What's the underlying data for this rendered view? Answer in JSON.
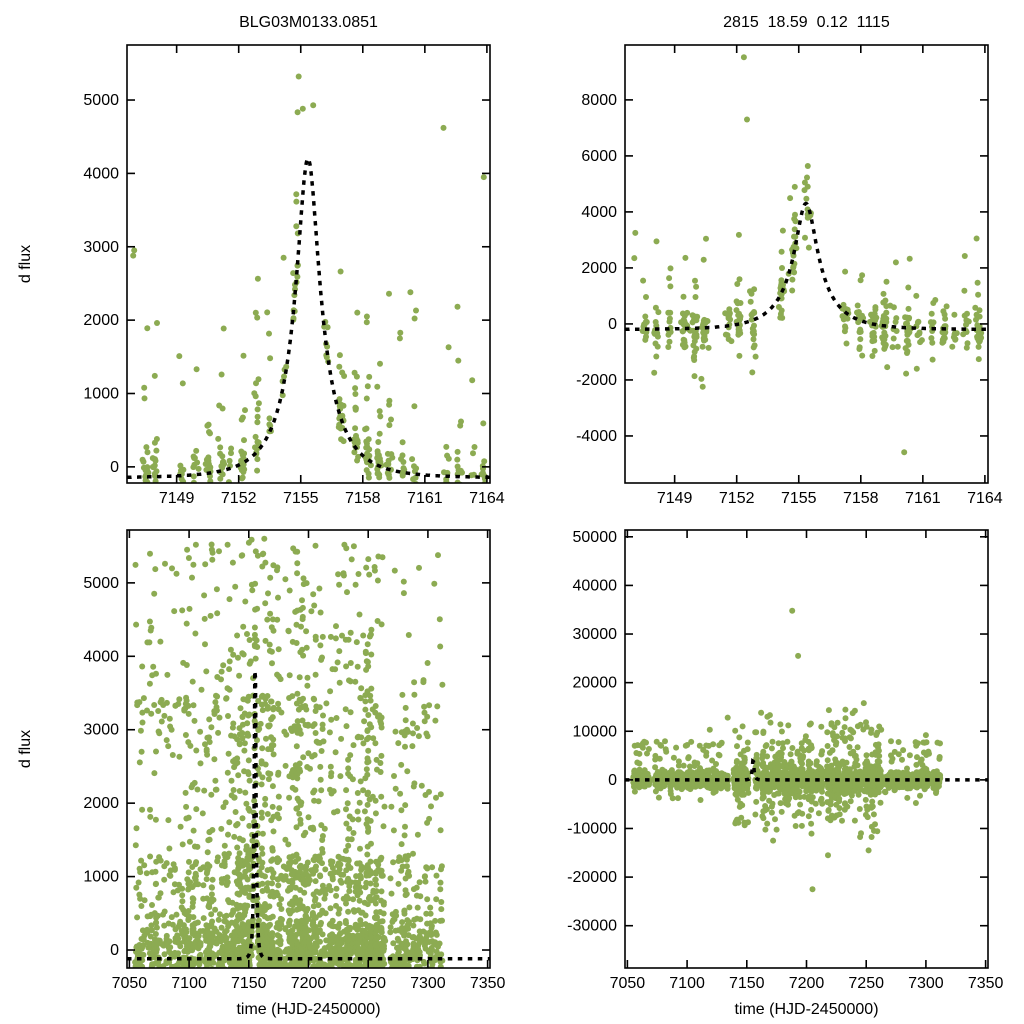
{
  "figure": {
    "background": "#ffffff",
    "point_color": "#8cab52",
    "curve_color": "#000000",
    "axis_color": "#000000"
  },
  "chart_data": {
    "type": "scatter",
    "description": "Four-panel microlensing light-curve display: top row zoomed on event peak, bottom row full season; green data points with dashed black Paczynski model fit.",
    "plots": [
      {
        "mount": "plot-top-left-zoom",
        "title": "BLG03M0133.0851",
        "ylabel": "d flux",
        "xlabel": "",
        "xlim": [
          7146.6,
          7164.15
        ],
        "ylim": [
          -220,
          5750
        ],
        "xticks": [
          7149,
          7152,
          7155,
          7158,
          7161,
          7164
        ],
        "yticks": [
          0,
          1000,
          2000,
          3000,
          4000,
          5000
        ],
        "area": {
          "x0": 127,
          "y0": 45,
          "x1": 490,
          "y1": 483
        },
        "model": {
          "type": "paczynski",
          "t0": 7155.35,
          "tE": 2.2,
          "u0": 0.25,
          "f": 1407,
          "base": -150,
          "peak_flux": 4350
        },
        "gen": {
          "seed": 101,
          "clusters": {
            "x0": 7146.8,
            "x1": 7164.1,
            "step": 0.62,
            "skip_p": 0.18,
            "n_min": 4,
            "n_max": 30,
            "sx": 0.07
          },
          "noise_mix": [
            {
              "p": 0.62,
              "type": "normal",
              "a": 130
            },
            {
              "p": 0.22,
              "type": "exp",
              "a": 420
            },
            {
              "p": 0.13,
              "type": "uniform",
              "a": 300,
              "b": 2400
            },
            {
              "p": 0.03,
              "type": "uniform",
              "a": -350,
              "b": -100
            }
          ],
          "extra_points": [
            [
              7154.9,
              5320
            ],
            [
              7161.9,
              4620
            ],
            [
              7163.85,
              3950
            ],
            [
              7146.95,
              2950
            ],
            [
              7146.9,
              2880
            ],
            [
              7158.2,
              2050
            ],
            [
              7160.3,
              2380
            ],
            [
              7155.6,
              4930
            ],
            [
              7155.1,
              4880
            ]
          ]
        }
      },
      {
        "mount": "plot-top-right-zoom",
        "title": "2815  18.59  0.12  1115",
        "ylabel": "",
        "xlabel": "",
        "xlim": [
          7146.6,
          7164.15
        ],
        "ylim": [
          -5680,
          9960
        ],
        "xticks": [
          7149,
          7152,
          7155,
          7158,
          7161,
          7164
        ],
        "yticks": [
          -4000,
          -2000,
          0,
          2000,
          4000,
          6000,
          8000
        ],
        "area": {
          "x0": 113,
          "y0": 45,
          "x1": 476,
          "y1": 483
        },
        "model": {
          "type": "paczynski",
          "t0": 7155.35,
          "tE": 2.2,
          "u0": 0.25,
          "f": 1455,
          "base": -200,
          "peak_flux": 4300
        },
        "gen": {
          "seed": 202,
          "clusters": {
            "x0": 7146.8,
            "x1": 7164.1,
            "step": 0.6,
            "skip_p": 0.15,
            "n_min": 5,
            "n_max": 30,
            "sx": 0.07
          },
          "noise_mix": [
            {
              "p": 0.55,
              "type": "normal",
              "a": 330
            },
            {
              "p": 0.3,
              "type": "normal",
              "a": 750
            },
            {
              "p": 0.12,
              "type": "uniform",
              "a": -1800,
              "b": 1800
            },
            {
              "p": 0.03,
              "type": "uniform",
              "a": 1800,
              "b": 3200
            }
          ],
          "extra_points": [
            [
              7152.35,
              9520
            ],
            [
              7152.5,
              7300
            ],
            [
              7160.1,
              -4580
            ],
            [
              7163.6,
              3050
            ],
            [
              7147.1,
              3250
            ],
            [
              7147.05,
              2350
            ],
            [
              7155.3,
              5050
            ]
          ]
        }
      },
      {
        "mount": "plot-bottom-left-full",
        "title": "",
        "ylabel": "d flux",
        "xlabel": "time (HJD-2450000)",
        "xlim": [
          7048,
          7352
        ],
        "ylim": [
          -245,
          5720
        ],
        "xticks": [
          7050,
          7100,
          7150,
          7200,
          7250,
          7300,
          7350
        ],
        "yticks": [
          0,
          1000,
          2000,
          3000,
          4000,
          5000
        ],
        "area": {
          "x0": 127,
          "y0": 18,
          "x1": 490,
          "y1": 456
        },
        "model": {
          "type": "paczynski",
          "t0": 7155.3,
          "tE": 2.2,
          "u0": 0.25,
          "f": 1487,
          "base": -120,
          "peak_flux": 4500
        },
        "gen": {
          "seed": 303,
          "clusters": {
            "x0": 7056,
            "x1": 7312,
            "step": 2.0,
            "skip_p": 0.1,
            "n_min": 10,
            "n_max": 48,
            "sx": 0.55,
            "n_regions": [
              [
                7048,
                7095,
                0.45
              ],
              [
                7095,
                7130,
                0.8
              ],
              [
                7130,
                7265,
                1.3
              ],
              [
                7265,
                7312,
                0.7
              ]
            ]
          },
          "noise_mix": [
            {
              "p": 0.5,
              "type": "normal",
              "a": 260
            },
            {
              "p": 0.22,
              "type": "uniform",
              "a": 0,
              "b": 1400
            },
            {
              "p": 0.18,
              "type": "uniform",
              "a": 800,
              "b": 3600
            },
            {
              "p": 0.1,
              "type": "uniform",
              "a": 3000,
              "b": 5650
            }
          ],
          "extra_points": [
            [
              7076,
              4200
            ],
            [
              7091,
              3350
            ],
            [
              7118,
              4550
            ],
            [
              7163,
              5600
            ],
            [
              7238,
              5500
            ],
            [
              7262,
              5350
            ]
          ]
        }
      },
      {
        "mount": "plot-bottom-right-full",
        "title": "",
        "ylabel": "",
        "xlabel": "time (HJD-2450000)",
        "xlim": [
          7048,
          7352
        ],
        "ylim": [
          -38700,
          51400
        ],
        "xticks": [
          7050,
          7100,
          7150,
          7200,
          7250,
          7300,
          7350
        ],
        "yticks": [
          -30000,
          -20000,
          -10000,
          0,
          10000,
          20000,
          30000,
          40000,
          50000
        ],
        "area": {
          "x0": 113,
          "y0": 18,
          "x1": 476,
          "y1": 456
        },
        "model": {
          "type": "paczynski",
          "t0": 7155.3,
          "tE": 2.2,
          "u0": 0.25,
          "f": 1455,
          "base": 0,
          "peak_flux": 4300
        },
        "gen": {
          "seed": 404,
          "clusters": {
            "x0": 7056,
            "x1": 7312,
            "step": 2.0,
            "skip_p": 0.12,
            "n_min": 8,
            "n_max": 40,
            "sx": 0.55
          },
          "noise_mix": [
            {
              "p": 0.8,
              "type": "normal",
              "a": 700
            },
            {
              "p": 0.15,
              "type": "normal",
              "a": 1800
            },
            {
              "p": 0.05,
              "type": "uniform",
              "a": 3000,
              "b": 8000
            }
          ],
          "noise_regions": [
            {
              "x0": 7140,
              "x1": 7265,
              "mix": [
                {
                  "p": 0.6,
                  "type": "normal",
                  "a": 1200
                },
                {
                  "p": 0.25,
                  "type": "normal",
                  "a": 3800
                },
                {
                  "p": 0.1,
                  "type": "uniform",
                  "a": -12000,
                  "b": 12000
                },
                {
                  "p": 0.05,
                  "type": "uniform",
                  "a": 5000,
                  "b": 15000
                }
              ]
            }
          ],
          "extra_points": [
            [
              7193,
              25500
            ],
            [
              7188,
              34800
            ],
            [
              7205,
              -22500
            ],
            [
              7162,
              13800
            ],
            [
              7134,
              12800
            ],
            [
              7248,
              15800
            ],
            [
              7252,
              -14500
            ],
            [
              7300,
              9200
            ],
            [
              7172,
              -12500
            ],
            [
              7218,
              -15500
            ],
            [
              7119,
              10300
            ]
          ]
        }
      }
    ]
  }
}
